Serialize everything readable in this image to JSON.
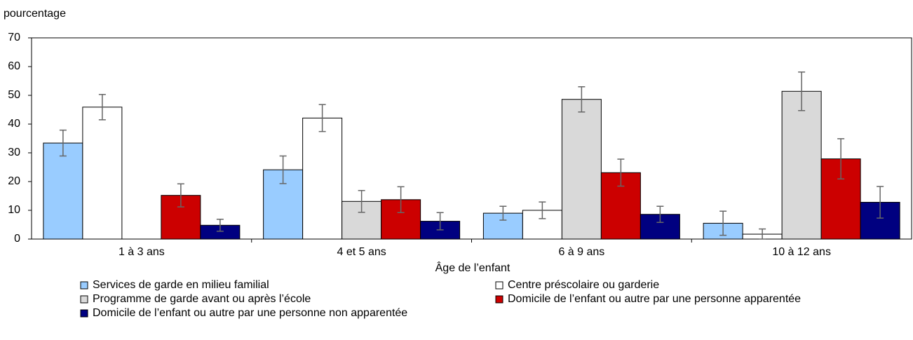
{
  "chart_data": {
    "type": "bar",
    "y_axis_label": "pourcentage",
    "x_axis_label": "Âge de l’enfant",
    "categories": [
      "1 à 3 ans",
      "4 et 5 ans",
      "6 à 9 ans",
      "10 à 12 ans"
    ],
    "series": [
      {
        "name": "Services de garde en milieu familial",
        "color": "#99ccff",
        "values": [
          33.4,
          24.1,
          9.0,
          5.5
        ],
        "errors": [
          4.5,
          4.8,
          2.4,
          4.2
        ]
      },
      {
        "name": "Centre préscolaire ou garderie",
        "color": "#ffffff",
        "values": [
          45.9,
          42.1,
          10.0,
          1.7
        ],
        "errors": [
          4.4,
          4.7,
          2.9,
          1.8
        ]
      },
      {
        "name": "Programme de garde avant ou après l’école",
        "color": "#d9d9d9",
        "values": [
          null,
          13.1,
          48.6,
          51.4
        ],
        "errors": [
          null,
          3.8,
          4.4,
          6.7
        ]
      },
      {
        "name": "Domicile de l’enfant ou autre par une personne apparentée",
        "color": "#cc0000",
        "values": [
          15.2,
          13.7,
          23.1,
          27.9
        ],
        "errors": [
          4.0,
          4.5,
          4.7,
          7.0
        ]
      },
      {
        "name": "Domicile de l’enfant ou autre par une personne non apparentée",
        "color": "#000080",
        "values": [
          4.8,
          6.2,
          8.6,
          12.8
        ],
        "errors": [
          2.1,
          3.0,
          2.8,
          5.5
        ]
      }
    ],
    "ylim": [
      0,
      70
    ],
    "yticks": [
      0,
      10,
      20,
      30,
      40,
      50,
      60,
      70
    ]
  }
}
